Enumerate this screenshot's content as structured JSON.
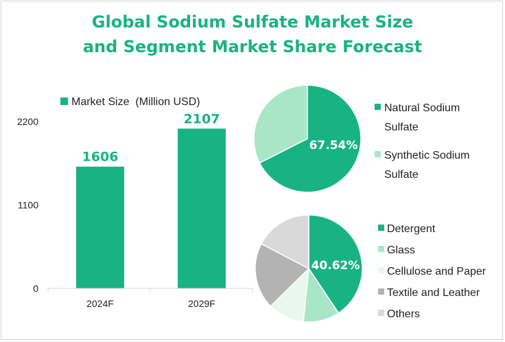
{
  "title_line1": "Global Sodium Sulfate Market Size",
  "title_line2": "and Segment Market Share Forecast",
  "colors": {
    "title": "#19b383",
    "bar": "#19b383"
  },
  "chart_data": [
    {
      "type": "bar",
      "legend": "Market Size  (Million USD)",
      "categories": [
        "2024F",
        "2029F"
      ],
      "values": [
        1606,
        2107
      ],
      "value_labels": [
        "1606",
        "2107"
      ],
      "yticks": [
        "0",
        "1100",
        "2200"
      ],
      "ylim": [
        0,
        2200
      ]
    },
    {
      "type": "pie",
      "labels": [
        "Natural Sodium Sulfate",
        "Synthetic Sodium Sulfate"
      ],
      "values": [
        67.54,
        32.46
      ],
      "colors": [
        "#19b383",
        "#a9e6c7"
      ],
      "data_label": "67.54%"
    },
    {
      "type": "pie",
      "labels": [
        "Detergent",
        "Glass",
        "Cellulose and Paper",
        "Textile and Leather",
        "Others"
      ],
      "values": [
        40.62,
        11,
        11,
        20,
        17.38
      ],
      "colors": [
        "#19b383",
        "#a9e6c7",
        "#e8f8ef",
        "#b3b3b3",
        "#d9d9d9"
      ],
      "data_label": "40.62%"
    }
  ]
}
